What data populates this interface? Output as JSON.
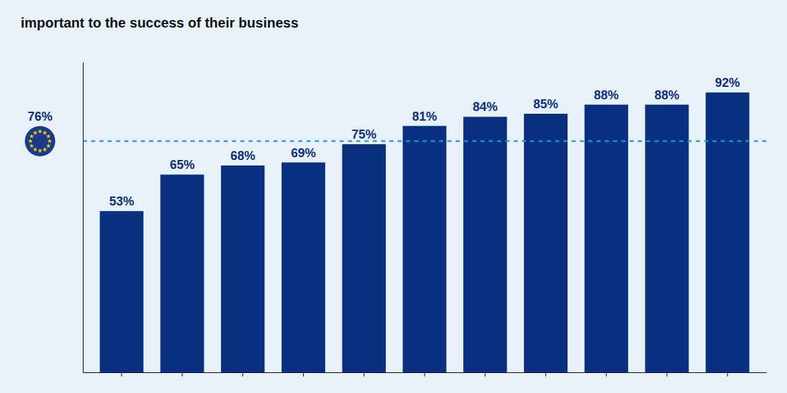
{
  "chart_data": {
    "type": "bar",
    "title": "important to the success of their business",
    "categories": [
      null,
      null,
      null,
      null,
      null,
      null,
      null,
      null,
      null,
      null,
      null
    ],
    "values": [
      53,
      65,
      68,
      69,
      75,
      81,
      84,
      85,
      88,
      88,
      92
    ],
    "value_labels": [
      "53%",
      "65%",
      "68%",
      "69%",
      "75%",
      "81%",
      "84%",
      "85%",
      "88%",
      "88%",
      "92%"
    ],
    "data_labels": true,
    "color": "#0a3080",
    "ylim": [
      0,
      102
    ],
    "tick_labels": false,
    "grid": false,
    "reference_line": {
      "value": 76,
      "label": "76%",
      "color": "#2196d8"
    }
  }
}
